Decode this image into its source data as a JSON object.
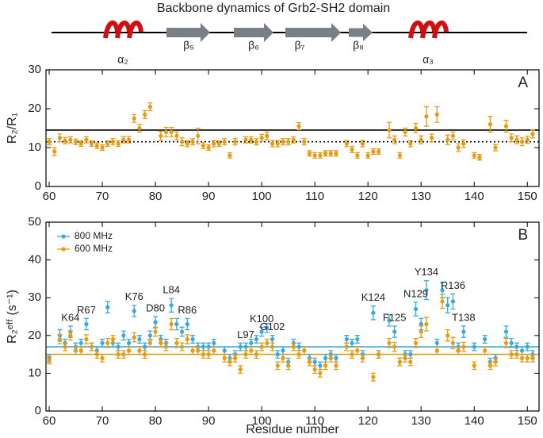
{
  "title": "Backbone dynamics of Grb2-SH2 domain",
  "secondary_structure": [
    {
      "kind": "helix",
      "label": "α₂"
    },
    {
      "kind": "strand",
      "label": "β₅"
    },
    {
      "kind": "strand",
      "label": "β₆"
    },
    {
      "kind": "strand",
      "label": "β₇"
    },
    {
      "kind": "strand",
      "label": "β₈"
    },
    {
      "kind": "helix",
      "label": "α₃"
    }
  ],
  "chart_data": [
    {
      "type": "errorbar",
      "panel_label": "A",
      "ylabel": "R₂/R₁",
      "xlim": [
        59.4,
        152.2
      ],
      "xticks": [
        60,
        70,
        80,
        90,
        100,
        110,
        120,
        130,
        140,
        150
      ],
      "ylim": [
        0,
        30
      ],
      "yticks": [
        0,
        10,
        20,
        30
      ],
      "hlines": [
        {
          "value": 14.5,
          "color": "#000000",
          "style": "solid"
        },
        {
          "value": 11.5,
          "color": "#000000",
          "style": "dotted"
        }
      ],
      "x": [
        60,
        61,
        62,
        63,
        64,
        65,
        66,
        67,
        68,
        69,
        70,
        71,
        72,
        73,
        74,
        75,
        76,
        77,
        78,
        79,
        81,
        82,
        83,
        84,
        85,
        86,
        87,
        88,
        89,
        90,
        91,
        92,
        93,
        94,
        95,
        97,
        98,
        99,
        100,
        101,
        102,
        103,
        104,
        105,
        106,
        107,
        108,
        109,
        110,
        111,
        112,
        113,
        114,
        116,
        117,
        118,
        119,
        120,
        121,
        122,
        124,
        125,
        126,
        127,
        128,
        129,
        130,
        131,
        132,
        133,
        135,
        136,
        137,
        138,
        140,
        141,
        143,
        144,
        146,
        147,
        148,
        149,
        150,
        151
      ],
      "series": [
        {
          "color": "#e69b12",
          "values": [
            11.5,
            9,
            12.5,
            11.8,
            12,
            11.5,
            11,
            12,
            11,
            10.5,
            10,
            11,
            11.5,
            11,
            12,
            12,
            17.5,
            15,
            18.5,
            20.5,
            13,
            14,
            14,
            13,
            11.5,
            11,
            11.5,
            13,
            10.5,
            10,
            11,
            11,
            11.5,
            8,
            11.5,
            12,
            12,
            11.5,
            12.5,
            13,
            11,
            11,
            11.5,
            11.5,
            12,
            15.5,
            11.5,
            8.5,
            8,
            8,
            8.5,
            8.5,
            8.5,
            11,
            9.5,
            8,
            11,
            8,
            9,
            9,
            14.5,
            12,
            8,
            14,
            11,
            15,
            12,
            18,
            12.5,
            18.5,
            12,
            13,
            10,
            11,
            8,
            7.5,
            16,
            10,
            15.5,
            12.5,
            12,
            11.5,
            12,
            13.5
          ],
          "errors": [
            0.8,
            1,
            1,
            0.8,
            0.8,
            0.7,
            0.7,
            0.8,
            0.7,
            0.7,
            0.7,
            0.7,
            0.8,
            0.7,
            0.8,
            0.8,
            1,
            1,
            1,
            1,
            1.2,
            1.2,
            1.2,
            1,
            1,
            0.8,
            0.8,
            2,
            0.8,
            0.7,
            0.8,
            0.7,
            0.8,
            0.7,
            0.8,
            0.8,
            0.8,
            0.8,
            0.9,
            1,
            0.8,
            0.8,
            0.8,
            0.8,
            0.8,
            0.9,
            0.8,
            0.7,
            0.7,
            0.7,
            0.7,
            0.7,
            0.7,
            0.8,
            0.8,
            0.7,
            0.8,
            0.7,
            0.7,
            0.7,
            2,
            1,
            0.7,
            1,
            0.8,
            1.2,
            1,
            2.5,
            1,
            2,
            1.2,
            1,
            1,
            1,
            0.7,
            0.7,
            2,
            0.8,
            1.5,
            1,
            1,
            1,
            0.9,
            1
          ]
        }
      ]
    },
    {
      "type": "errorbar",
      "panel_label": "B",
      "ylabel": "R₂ᵉᶠᶠ (s⁻¹)",
      "xlabel": "Residue number",
      "xlim": [
        59.4,
        152.2
      ],
      "xticks": [
        60,
        70,
        80,
        90,
        100,
        110,
        120,
        130,
        140,
        150
      ],
      "ylim": [
        0,
        50
      ],
      "yticks": [
        0,
        10,
        20,
        30,
        40,
        50
      ],
      "legend": "upper left",
      "hlines": [
        {
          "value": 17,
          "color": "#3aa8e0",
          "style": "solid"
        },
        {
          "value": 15,
          "color": "#e69b12",
          "style": "solid"
        }
      ],
      "x": [
        60,
        62,
        63,
        64,
        65,
        66,
        67,
        68,
        69,
        70,
        71,
        72,
        73,
        74,
        75,
        76,
        77,
        78,
        79,
        80,
        81,
        82,
        83,
        84,
        85,
        86,
        87,
        88,
        89,
        90,
        91,
        93,
        94,
        95,
        96,
        97,
        98,
        99,
        100,
        101,
        102,
        103,
        104,
        105,
        106,
        107,
        108,
        109,
        110,
        111,
        112,
        113,
        114,
        116,
        117,
        118,
        119,
        121,
        122,
        124,
        125,
        126,
        127,
        128,
        129,
        130,
        131,
        133,
        134,
        135,
        136,
        137,
        138,
        140,
        142,
        143,
        144,
        146,
        147,
        148,
        149,
        150,
        151
      ],
      "series": [
        {
          "name": "800 MHz",
          "color": "#3aa8e0",
          "values": [
            14,
            20,
            18,
            21,
            17,
            18,
            23,
            17,
            16,
            18,
            27.5,
            18,
            17,
            20,
            18,
            26.5,
            19,
            17,
            20,
            23.5,
            19,
            18,
            28,
            23,
            21,
            23,
            19,
            17,
            17,
            17,
            18,
            16,
            14,
            15,
            17,
            17,
            18,
            19,
            21,
            22,
            19,
            15,
            16,
            13,
            18,
            17,
            16,
            14,
            13,
            12,
            14,
            15,
            14,
            19,
            18,
            19,
            15,
            26,
            15,
            24,
            21,
            13,
            15,
            15,
            27,
            23,
            32,
            18,
            32,
            28,
            29,
            17,
            21,
            17,
            19,
            13,
            14,
            21,
            18,
            17,
            16,
            17,
            15
          ],
          "errors": [
            1,
            1.5,
            1,
            1.5,
            1,
            1,
            1.5,
            1,
            1,
            1,
            1.5,
            1,
            1,
            1.2,
            1,
            1.5,
            1,
            1,
            1.2,
            1.5,
            1,
            1,
            1.8,
            1.5,
            1.2,
            1.5,
            1,
            1,
            1,
            1,
            1,
            1,
            1,
            1,
            1,
            1,
            1,
            1,
            1.2,
            1.2,
            1,
            1,
            1,
            1,
            1,
            1,
            1,
            1,
            1,
            1,
            1,
            1,
            1,
            1,
            1,
            1,
            1,
            1.8,
            1,
            1.5,
            1.5,
            1,
            1,
            1,
            1.8,
            1.5,
            2.5,
            1,
            2,
            2,
            2,
            1,
            1.5,
            1,
            1,
            1,
            1,
            1.5,
            1.2,
            1,
            1,
            1,
            1
          ]
        },
        {
          "name": "600 MHz",
          "color": "#e69b12",
          "values": [
            13.5,
            19,
            17,
            20,
            16,
            16,
            19,
            17,
            15,
            14,
            18,
            19,
            15,
            15,
            16,
            19.5,
            16,
            15,
            18,
            21,
            18,
            17,
            23,
            18,
            17,
            19,
            16,
            16,
            15,
            15,
            16,
            14,
            13,
            14,
            11,
            15,
            16,
            15,
            17,
            18,
            17,
            12,
            14,
            12,
            17,
            15,
            16,
            13,
            11,
            10,
            12,
            14,
            12,
            17,
            15,
            16,
            14,
            9,
            15,
            18,
            17,
            13,
            14,
            13,
            18,
            21,
            23,
            16,
            29,
            20,
            18,
            16,
            17,
            12,
            16,
            12,
            13,
            18,
            15,
            15,
            14,
            14,
            14
          ],
          "errors": [
            1,
            1.2,
            1,
            1.2,
            1,
            1,
            1.2,
            1,
            1,
            1,
            1.2,
            1,
            1,
            1,
            1,
            1.2,
            1,
            1,
            1,
            1.2,
            1,
            1,
            1.5,
            1.2,
            1,
            1.2,
            1,
            1,
            1,
            1,
            1,
            1,
            1,
            1,
            1,
            1,
            1,
            1,
            1,
            1,
            1,
            1,
            1,
            1,
            1,
            1,
            1,
            1,
            1,
            1,
            1,
            1,
            1,
            1,
            1,
            1,
            1,
            1,
            1,
            1.2,
            1.2,
            1,
            1,
            1,
            1.2,
            1.5,
            1.8,
            1,
            1.8,
            1.5,
            1.5,
            1,
            1.2,
            1,
            1,
            1,
            1,
            1.2,
            1,
            1,
            1,
            1,
            1
          ]
        }
      ],
      "annotations": [
        {
          "text": "K64",
          "x": 64
        },
        {
          "text": "R67",
          "x": 67
        },
        {
          "text": "K76",
          "x": 76
        },
        {
          "text": "D80",
          "x": 80
        },
        {
          "text": "L84",
          "x": 83
        },
        {
          "text": "R86",
          "x": 86
        },
        {
          "text": "L97",
          "x": 97
        },
        {
          "text": "K100",
          "x": 100
        },
        {
          "text": "G102",
          "x": 102
        },
        {
          "text": "K124",
          "x": 121
        },
        {
          "text": "F125",
          "x": 125
        },
        {
          "text": "N129",
          "x": 129
        },
        {
          "text": "Y134",
          "x": 131
        },
        {
          "text": "R136",
          "x": 136
        },
        {
          "text": "T138",
          "x": 138
        }
      ]
    }
  ]
}
